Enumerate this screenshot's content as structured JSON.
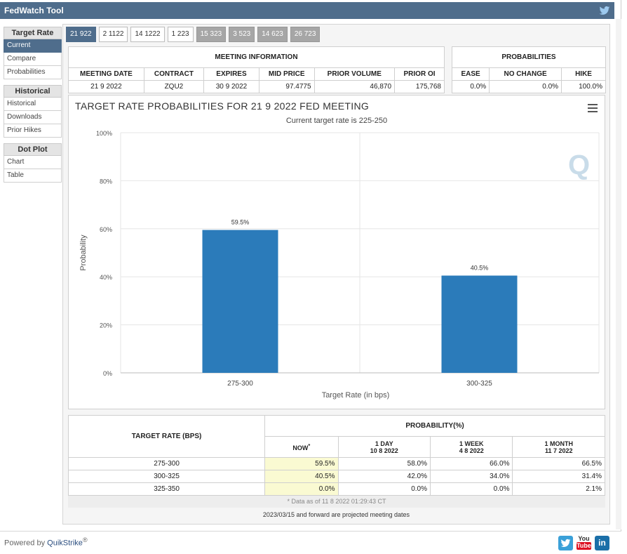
{
  "app": {
    "title": "FedWatch Tool"
  },
  "sidebar": {
    "sections": [
      {
        "heading": "Target Rate",
        "items": [
          "Current",
          "Compare",
          "Probabilities"
        ]
      },
      {
        "heading": "Historical",
        "items": [
          "Historical",
          "Downloads",
          "Prior Hikes"
        ]
      },
      {
        "heading": "Dot Plot",
        "items": [
          "Chart",
          "Table"
        ]
      }
    ],
    "active_item": "Current"
  },
  "tabs": [
    {
      "label": "21 922",
      "state": "active"
    },
    {
      "label": "2 1122",
      "state": "normal"
    },
    {
      "label": "14 1222",
      "state": "normal"
    },
    {
      "label": "1 223",
      "state": "normal"
    },
    {
      "label": "15 323",
      "state": "projected"
    },
    {
      "label": "3 523",
      "state": "projected"
    },
    {
      "label": "14 623",
      "state": "projected"
    },
    {
      "label": "26 723",
      "state": "projected"
    }
  ],
  "meeting_info": {
    "heading": "MEETING INFORMATION",
    "columns": [
      "MEETING DATE",
      "CONTRACT",
      "EXPIRES",
      "MID PRICE",
      "PRIOR VOLUME",
      "PRIOR OI"
    ],
    "row": [
      "21 9 2022",
      "ZQU2",
      "30 9 2022",
      "97.4775",
      "46,870",
      "175,768"
    ]
  },
  "probabilities": {
    "heading": "PROBABILITIES",
    "columns": [
      "EASE",
      "NO CHANGE",
      "HIKE"
    ],
    "row": [
      "0.0%",
      "0.0%",
      "100.0%"
    ]
  },
  "chart_data": {
    "type": "bar",
    "title": "TARGET RATE PROBABILITIES FOR 21 9 2022 FED MEETING",
    "subtitle": "Current target rate is 225-250",
    "xlabel": "Target Rate (in bps)",
    "ylabel": "Probability",
    "categories": [
      "275-300",
      "300-325"
    ],
    "values": [
      59.5,
      40.5
    ],
    "data_labels": [
      "59.5%",
      "40.5%"
    ],
    "ylim": [
      0,
      100
    ],
    "yticks": [
      0,
      20,
      40,
      60,
      80,
      100
    ],
    "ytick_labels": [
      "0%",
      "20%",
      "40%",
      "60%",
      "80%",
      "100%"
    ],
    "bar_color": "#2b7bba",
    "grid": true,
    "legend": "none"
  },
  "prob_table": {
    "target_header": "TARGET RATE (BPS)",
    "prob_header": "PROBABILITY(%)",
    "columns": [
      {
        "label": "NOW",
        "sup": "*",
        "date": ""
      },
      {
        "label": "1 DAY",
        "date": "10 8 2022"
      },
      {
        "label": "1 WEEK",
        "date": "4 8 2022"
      },
      {
        "label": "1 MONTH",
        "date": "11 7 2022"
      }
    ],
    "rows": [
      {
        "rate": "275-300",
        "values": [
          "59.5%",
          "58.0%",
          "66.0%",
          "66.5%"
        ]
      },
      {
        "rate": "300-325",
        "values": [
          "40.5%",
          "42.0%",
          "34.0%",
          "31.4%"
        ]
      },
      {
        "rate": "325-350",
        "values": [
          "0.0%",
          "0.0%",
          "0.0%",
          "2.1%"
        ]
      }
    ],
    "footnote": "* Data as of 11 8 2022 01:29:43 CT"
  },
  "projected_note": "2023/03/15 and forward are projected meeting dates",
  "footer": {
    "powered_by": "Powered by",
    "brand": "QuikStrike",
    "reg": "®",
    "icons": [
      "twitter-icon",
      "youtube-icon",
      "linkedin-icon"
    ],
    "youtube_label_top": "You",
    "youtube_label_bottom": "Tube",
    "linkedin_label": "in"
  }
}
